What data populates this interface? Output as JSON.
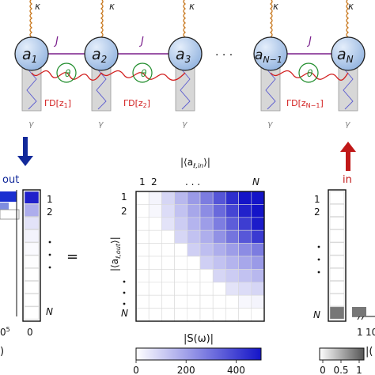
{
  "chain": {
    "kappa": "κ",
    "gamma": "γ",
    "hopping": "J",
    "phase": "θ",
    "ellipsis": "· · ·",
    "modes": [
      {
        "base": "a",
        "sub": "1"
      },
      {
        "base": "a",
        "sub": "2"
      },
      {
        "base": "a",
        "sub": "3"
      },
      {
        "base": "a",
        "sub": "N−1"
      },
      {
        "base": "a",
        "sub": "N"
      }
    ],
    "dissipators": [
      {
        "text": "ΓD[z",
        "sub": "1",
        "close": "]"
      },
      {
        "text": "ΓD[z",
        "sub": "2",
        "close": "]"
      },
      {
        "text": "ΓD[z",
        "sub": "N−1",
        "close": "]"
      }
    ]
  },
  "labels": {
    "out": "out",
    "in": "in",
    "equals": "=",
    "col_header": "|⟨a",
    "col_header_sub": "ℓ,in",
    "col_header_close": "⟩|",
    "row_header": "|⟨a",
    "row_header_sub": "ℓ,out",
    "row_header_close": "⟩|",
    "top_1": "1",
    "top_2": "2",
    "top_dots": ". . .",
    "top_N": "N",
    "row_1": "1",
    "row_2": "2",
    "row_dots": ".",
    "row_N": "N",
    "left_1": "1",
    "left_2": "2",
    "left_N": "N",
    "right_1": "1",
    "right_2": "2",
    "right_N": "N",
    "left_axis_0": "0",
    "left_axis_frag": "0",
    "left_axis_exp": "5",
    "left_paren": ")",
    "right_axis_frag_1": "1",
    "right_axis_frag_10": "10",
    "right_paren": "|("
  },
  "colorbar_S": {
    "title": "|S(ω)|",
    "ticks": [
      "0",
      "200",
      "400"
    ],
    "tick_values": [
      0,
      200,
      400
    ],
    "max": 500,
    "color_low": "#ffffff",
    "color_high": "#1414c8"
  },
  "colorbar_gray": {
    "ticks": [
      "0",
      "0.5",
      "1"
    ],
    "tick_values": [
      0,
      0.5,
      1
    ],
    "color_low": "#ffffff",
    "color_high": "#555555"
  },
  "colors": {
    "mode_fill": "#a9c4e8",
    "coupling": "#7a1f8c",
    "dissipator": "#d21f1f",
    "kappa_wave": "#c8781e",
    "out_arrow": "#12299a",
    "in_arrow": "#c01818",
    "phase_loop": "#1e8c2a",
    "gamma_text": "#888888"
  }
}
